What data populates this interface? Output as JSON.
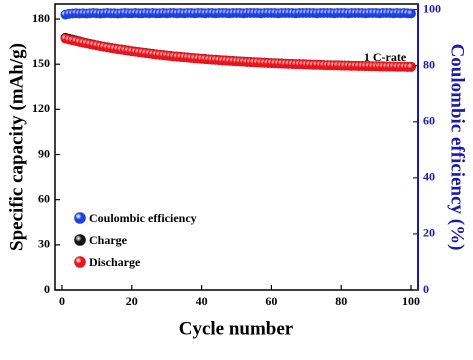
{
  "chart_data": {
    "type": "scatter",
    "x_label": "Cycle number",
    "y_label": "Specific capacity (mAh/g)",
    "y2_label": "Coulombic efficiency (%)",
    "annotation": "1 C-rate",
    "xlim": [
      -2,
      102
    ],
    "xticks": [
      0,
      20,
      40,
      60,
      80,
      100
    ],
    "ylim": [
      0,
      190
    ],
    "yticks": [
      0,
      30,
      60,
      90,
      120,
      150,
      180
    ],
    "y2lim": [
      0,
      102
    ],
    "y2ticks": [
      0,
      20,
      40,
      60,
      80,
      100
    ],
    "y2_color": "#1a1aa6",
    "legend": "lower left",
    "x": [
      1,
      2,
      3,
      4,
      5,
      6,
      7,
      8,
      9,
      10,
      11,
      12,
      13,
      14,
      15,
      16,
      17,
      18,
      19,
      20,
      21,
      22,
      23,
      24,
      25,
      26,
      27,
      28,
      29,
      30,
      31,
      32,
      33,
      34,
      35,
      36,
      37,
      38,
      39,
      40,
      41,
      42,
      43,
      44,
      45,
      46,
      47,
      48,
      49,
      50,
      51,
      52,
      53,
      54,
      55,
      56,
      57,
      58,
      59,
      60,
      61,
      62,
      63,
      64,
      65,
      66,
      67,
      68,
      69,
      70,
      71,
      72,
      73,
      74,
      75,
      76,
      77,
      78,
      79,
      80,
      81,
      82,
      83,
      84,
      85,
      86,
      87,
      88,
      89,
      90,
      91,
      92,
      93,
      94,
      95,
      96,
      97,
      98,
      99,
      100
    ],
    "series": [
      {
        "name": "Coulombic efficiency",
        "color": "#1f3fe0",
        "axis": "y2",
        "values": [
          98.2,
          98.5,
          98.6,
          98.7,
          98.6,
          98.7,
          98.6,
          98.7,
          98.8,
          98.7,
          98.6,
          98.7,
          98.8,
          98.7,
          98.7,
          98.6,
          98.7,
          98.8,
          98.7,
          98.7,
          98.8,
          98.7,
          98.7,
          98.8,
          98.7,
          98.8,
          98.7,
          98.7,
          98.8,
          98.7,
          98.8,
          98.8,
          98.7,
          98.8,
          98.7,
          98.8,
          98.8,
          98.7,
          98.8,
          98.8,
          98.7,
          98.8,
          98.8,
          98.7,
          98.8,
          98.8,
          98.8,
          98.7,
          98.8,
          98.8,
          98.8,
          98.7,
          98.8,
          98.8,
          98.8,
          98.8,
          98.7,
          98.8,
          98.8,
          98.8,
          98.8,
          98.7,
          98.8,
          98.8,
          98.8,
          98.8,
          98.7,
          98.8,
          98.8,
          98.8,
          98.8,
          98.8,
          98.7,
          98.8,
          98.8,
          98.8,
          98.8,
          98.7,
          98.8,
          98.8,
          98.8,
          98.7,
          98.8,
          98.8,
          98.8,
          98.8,
          98.7,
          98.8,
          98.8,
          98.8,
          98.7,
          98.8,
          98.8,
          98.8,
          98.7,
          98.8,
          98.7,
          98.8,
          98.7,
          98.6
        ]
      },
      {
        "name": "Charge",
        "color": "#111111",
        "values": [
          167.6,
          167.0,
          166.4,
          165.8,
          165.2,
          164.6,
          164.1,
          163.6,
          163.1,
          162.6,
          162.1,
          161.7,
          161.3,
          160.9,
          160.5,
          160.1,
          159.8,
          159.4,
          159.1,
          158.7,
          158.4,
          158.1,
          157.8,
          157.5,
          157.2,
          156.9,
          156.6,
          156.3,
          156.1,
          155.8,
          155.6,
          155.3,
          155.1,
          154.9,
          154.7,
          154.5,
          154.3,
          154.0,
          153.9,
          153.7,
          153.5,
          153.3,
          153.1,
          153.0,
          152.8,
          152.6,
          152.5,
          152.3,
          152.2,
          152.0,
          151.9,
          151.8,
          151.6,
          151.5,
          151.4,
          151.3,
          151.1,
          151.0,
          150.9,
          150.8,
          150.7,
          150.6,
          150.5,
          150.4,
          150.3,
          150.2,
          150.1,
          150.1,
          150.0,
          149.9,
          149.8,
          149.7,
          149.7,
          149.6,
          149.5,
          149.4,
          149.4,
          149.3,
          149.3,
          149.2,
          149.1,
          149.1,
          149.0,
          149.0,
          148.9,
          148.9,
          148.8,
          148.8,
          148.7,
          148.7,
          148.6,
          148.6,
          148.5,
          148.5,
          148.5,
          148.4,
          148.4,
          148.4,
          148.3,
          148.3
        ]
      },
      {
        "name": "Discharge",
        "color": "#e8141c",
        "values": [
          167.0,
          166.4,
          165.9,
          165.4,
          164.8,
          164.3,
          163.9,
          163.4,
          162.9,
          162.5,
          162.0,
          161.6,
          161.2,
          160.8,
          160.4,
          160.0,
          159.7,
          159.3,
          159.0,
          158.6,
          158.3,
          158.0,
          157.7,
          157.4,
          157.1,
          156.8,
          156.5,
          156.2,
          156.0,
          155.7,
          155.5,
          155.2,
          155.0,
          154.8,
          154.6,
          154.4,
          154.2,
          153.9,
          153.8,
          153.6,
          153.4,
          153.2,
          153.0,
          152.9,
          152.7,
          152.5,
          152.4,
          152.2,
          152.1,
          151.9,
          151.8,
          151.7,
          151.5,
          151.4,
          151.3,
          151.2,
          151.0,
          150.9,
          150.8,
          150.7,
          150.6,
          150.5,
          150.4,
          150.3,
          150.2,
          150.1,
          150.0,
          150.0,
          149.9,
          149.8,
          149.7,
          149.6,
          149.6,
          149.5,
          149.4,
          149.3,
          149.3,
          149.2,
          149.2,
          149.1,
          149.0,
          149.0,
          148.9,
          148.9,
          148.8,
          148.8,
          148.7,
          148.7,
          148.6,
          148.6,
          148.5,
          148.5,
          148.4,
          148.4,
          148.4,
          148.3,
          148.3,
          148.3,
          148.2,
          148.2
        ]
      }
    ]
  }
}
